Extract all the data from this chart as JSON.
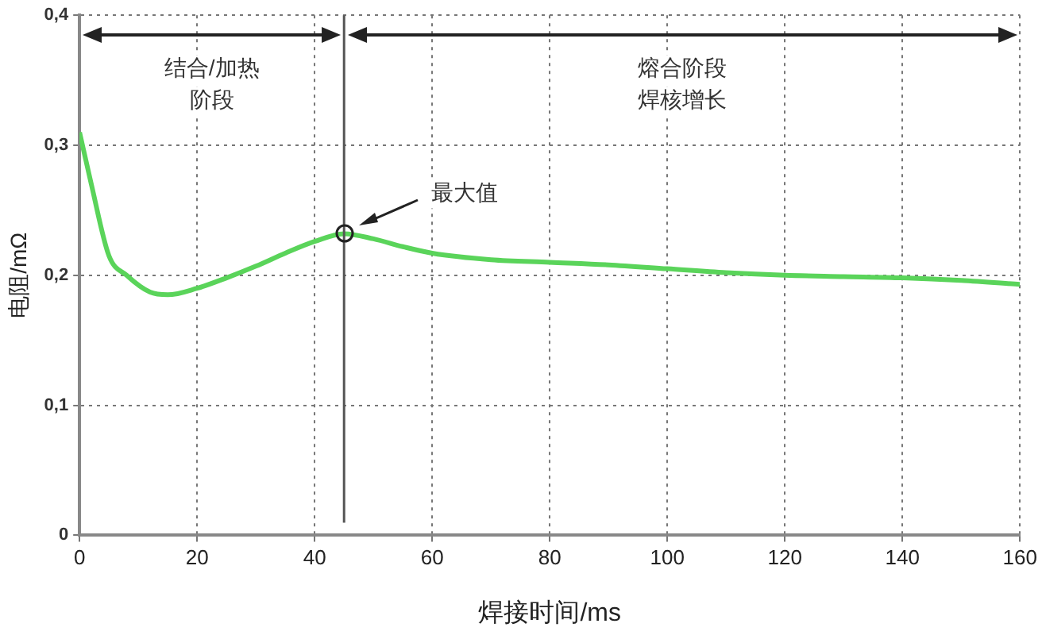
{
  "chart_data": {
    "type": "line",
    "xlabel": "焊接时间/ms",
    "ylabel": "电阻/mΩ",
    "x": [
      0,
      2,
      5,
      8,
      12,
      15,
      20,
      25,
      30,
      35,
      40,
      45,
      50,
      55,
      60,
      70,
      80,
      90,
      100,
      110,
      120,
      130,
      140,
      150,
      160
    ],
    "series": [
      {
        "color": "#5ad45a",
        "values": [
          0.31,
          0.27,
          0.215,
          0.2,
          0.187,
          0.185,
          0.19,
          0.198,
          0.207,
          0.217,
          0.226,
          0.232,
          0.228,
          0.222,
          0.217,
          0.212,
          0.21,
          0.208,
          0.205,
          0.202,
          0.2,
          0.199,
          0.198,
          0.196,
          0.193
        ]
      }
    ],
    "xlim": [
      0,
      160
    ],
    "xticks": [
      0,
      20,
      40,
      60,
      80,
      100,
      120,
      140,
      160
    ],
    "ylim": [
      0,
      0.4
    ],
    "yticks": [
      {
        "value": 0,
        "label": "0"
      },
      {
        "value": 0.1,
        "label": "0,1"
      },
      {
        "value": 0.2,
        "label": "0,2"
      },
      {
        "value": 0.3,
        "label": "0,3"
      },
      {
        "value": 0.4,
        "label": "0,4"
      }
    ],
    "grid": true,
    "legend": false,
    "marker": "none",
    "line_style": "solid",
    "ref_lines": [
      {
        "axis": "x",
        "value": 45,
        "color": "#555555"
      }
    ],
    "annotations": [
      "结合/加热阶段",
      "熔合阶段焊核增长",
      "最大值"
    ]
  }
}
